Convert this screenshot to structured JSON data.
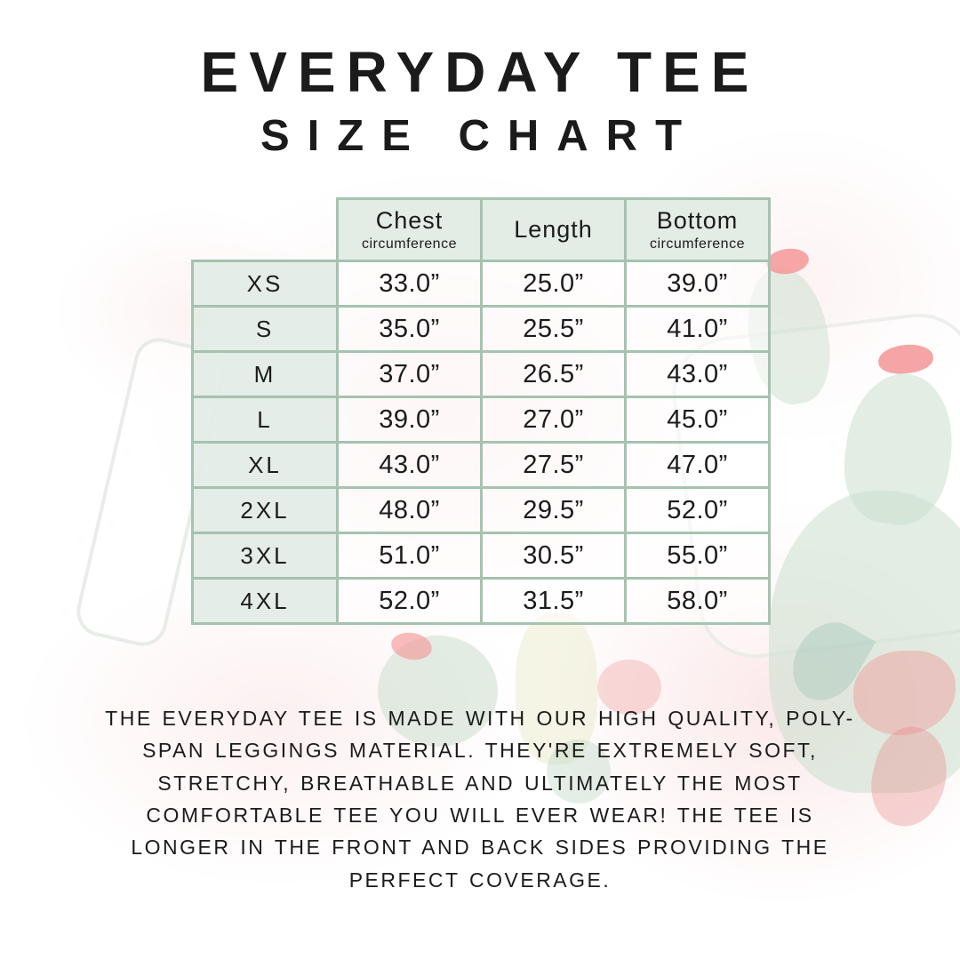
{
  "header": {
    "title": "EVERYDAY TEE",
    "subtitle": "SIZE CHART"
  },
  "chart_data": {
    "type": "table",
    "title": "Everyday Tee Size Chart",
    "columns": [
      {
        "label": "Chest",
        "sublabel": "circumference"
      },
      {
        "label": "Length",
        "sublabel": ""
      },
      {
        "label": "Bottom",
        "sublabel": "circumference"
      }
    ],
    "rows": [
      {
        "size": "XS",
        "chest": "33.0”",
        "length": "25.0”",
        "bottom": "39.0”"
      },
      {
        "size": "S",
        "chest": "35.0”",
        "length": "25.5”",
        "bottom": "41.0”"
      },
      {
        "size": "M",
        "chest": "37.0”",
        "length": "26.5”",
        "bottom": "43.0”"
      },
      {
        "size": "L",
        "chest": "39.0”",
        "length": "27.0”",
        "bottom": "45.0”"
      },
      {
        "size": "XL",
        "chest": "43.0”",
        "length": "27.5”",
        "bottom": "47.0”"
      },
      {
        "size": "2XL",
        "chest": "48.0”",
        "length": "29.5”",
        "bottom": "52.0”"
      },
      {
        "size": "3XL",
        "chest": "51.0”",
        "length": "30.5”",
        "bottom": "55.0”"
      },
      {
        "size": "4XL",
        "chest": "52.0”",
        "length": "31.5”",
        "bottom": "58.0”"
      }
    ]
  },
  "description": "THE EVERYDAY TEE IS MADE WITH OUR HIGH QUALITY, POLY-SPAN LEGGINGS MATERIAL. THEY'RE EXTREMELY SOFT, STRETCHY, BREATHABLE AND ULTIMATELY THE MOST COMFORTABLE TEE YOU WILL EVER WEAR! THE TEE IS LONGER IN THE FRONT AND BACK SIDES PROVIDING THE PERFECT COVERAGE.",
  "colors": {
    "table_border": "#a5c3af",
    "header_cell_bg": "#e2ece5",
    "text": "#1b1b1b",
    "cactus_green": "#cbe0ce",
    "flower_pink": "#f39898",
    "watercolor_pink": "#f7d3d5"
  }
}
